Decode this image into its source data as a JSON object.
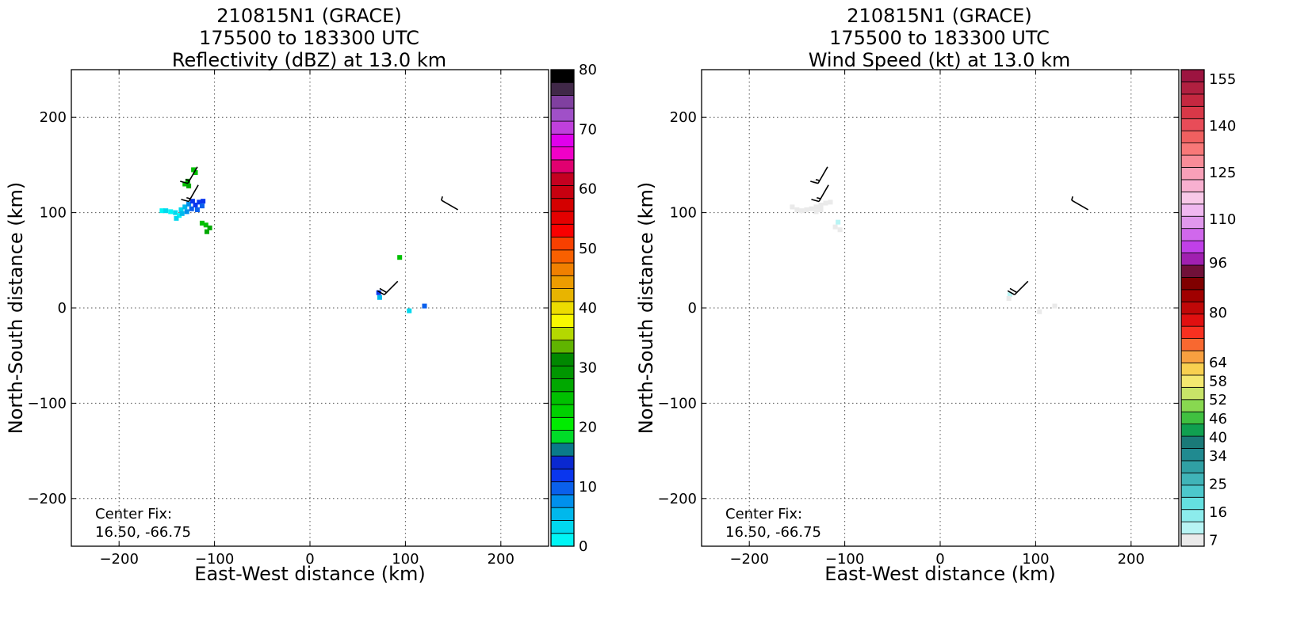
{
  "chart_data": [
    {
      "type": "heatmap",
      "title_lines": [
        "210815N1 (GRACE)",
        "175500 to 183300 UTC",
        "Reflectivity (dBZ) at 13.0 km"
      ],
      "xlabel": "East-West distance (km)",
      "ylabel": "North-South distance (km)",
      "xlim": [
        -250,
        250
      ],
      "ylim": [
        -250,
        250
      ],
      "xticks": [
        -200,
        -100,
        0,
        100,
        200
      ],
      "yticks": [
        -200,
        -100,
        0,
        100,
        200
      ],
      "xtick_labels": [
        "−200",
        "−100",
        "0",
        "100",
        "200"
      ],
      "ytick_labels": [
        "−200",
        "−100",
        "0",
        "100",
        "200"
      ],
      "grid": true,
      "annotation": [
        "Center Fix:",
        "16.50, -66.75"
      ],
      "colorbar": {
        "min": 0,
        "max": 80,
        "tick_values": [
          0,
          10,
          20,
          30,
          40,
          50,
          60,
          70,
          80
        ],
        "tick_labels": [
          "0",
          "10",
          "20",
          "30",
          "40",
          "50",
          "60",
          "70",
          "80"
        ],
        "colors": [
          "#00f5f5",
          "#00d8ee",
          "#00b8ec",
          "#0090ec",
          "#0a60ec",
          "#0a36ee",
          "#0a28d0",
          "#0a7a8a",
          "#00dc28",
          "#00ec00",
          "#00d000",
          "#00c000",
          "#00a800",
          "#009600",
          "#008800",
          "#60b400",
          "#b4d800",
          "#f8f800",
          "#ecdc00",
          "#e8b400",
          "#ec9c00",
          "#f08000",
          "#f86000",
          "#f84000",
          "#f80000",
          "#e40000",
          "#d40000",
          "#c80010",
          "#c40020",
          "#e00070",
          "#f000c8",
          "#e000ec",
          "#c040dc",
          "#a050c8",
          "#8040a0",
          "#402848",
          "#000000"
        ]
      },
      "cells": [
        {
          "x": -122,
          "y": 145,
          "v": 24
        },
        {
          "x": -120,
          "y": 142,
          "v": 24
        },
        {
          "x": -128,
          "y": 133,
          "v": 26
        },
        {
          "x": -131,
          "y": 130,
          "v": 24
        },
        {
          "x": -127,
          "y": 128,
          "v": 26
        },
        {
          "x": -155,
          "y": 102,
          "v": 2
        },
        {
          "x": -151,
          "y": 102,
          "v": 3
        },
        {
          "x": -146,
          "y": 101,
          "v": 1
        },
        {
          "x": -141,
          "y": 100,
          "v": 3
        },
        {
          "x": -137,
          "y": 97,
          "v": 2
        },
        {
          "x": -140,
          "y": 94,
          "v": 3
        },
        {
          "x": -135,
          "y": 103,
          "v": 4
        },
        {
          "x": -131,
          "y": 106,
          "v": 6
        },
        {
          "x": -127,
          "y": 109,
          "v": 7
        },
        {
          "x": -134,
          "y": 99,
          "v": 5
        },
        {
          "x": -129,
          "y": 101,
          "v": 7
        },
        {
          "x": -124,
          "y": 104,
          "v": 9
        },
        {
          "x": -120,
          "y": 108,
          "v": 11
        },
        {
          "x": -116,
          "y": 111,
          "v": 12
        },
        {
          "x": -112,
          "y": 112,
          "v": 11
        },
        {
          "x": -118,
          "y": 103,
          "v": 10
        },
        {
          "x": -113,
          "y": 107,
          "v": 10
        },
        {
          "x": -123,
          "y": 112,
          "v": 11
        },
        {
          "x": -109,
          "y": 87,
          "v": 24
        },
        {
          "x": -105,
          "y": 84,
          "v": 26
        },
        {
          "x": -108,
          "y": 80,
          "v": 26
        },
        {
          "x": -113,
          "y": 89,
          "v": 24
        },
        {
          "x": 94,
          "y": 53,
          "v": 24
        },
        {
          "x": 72,
          "y": 16,
          "v": 11
        },
        {
          "x": 73,
          "y": 11,
          "v": 5
        },
        {
          "x": 104,
          "y": -3,
          "v": 4
        },
        {
          "x": 120,
          "y": 2,
          "v": 9
        }
      ],
      "barbs": [
        {
          "x": -118,
          "y": 148,
          "dir": 210,
          "kt": 15
        },
        {
          "x": -117,
          "y": 129,
          "dir": 210,
          "kt": 15
        },
        {
          "x": 155,
          "y": 103,
          "dir": 300,
          "kt": 5
        },
        {
          "x": 92,
          "y": 28,
          "dir": 225,
          "kt": 20
        }
      ]
    },
    {
      "type": "heatmap",
      "title_lines": [
        "210815N1 (GRACE)",
        "175500 to 183300 UTC",
        "Wind Speed (kt) at 13.0 km"
      ],
      "xlabel": "East-West distance (km)",
      "ylabel": "North-South distance (km)",
      "xlim": [
        -250,
        250
      ],
      "ylim": [
        -250,
        250
      ],
      "xticks": [
        -200,
        -100,
        0,
        100,
        200
      ],
      "yticks": [
        -200,
        -100,
        0,
        100,
        200
      ],
      "xtick_labels": [
        "−200",
        "−100",
        "0",
        "100",
        "200"
      ],
      "ytick_labels": [
        "−200",
        "−100",
        "0",
        "100",
        "200"
      ],
      "grid": true,
      "annotation": [
        "Center Fix:",
        "16.50, -66.75"
      ],
      "colorbar": {
        "min": 7,
        "max": 160,
        "tick_values": [
          7,
          16,
          25,
          34,
          40,
          46,
          52,
          58,
          64,
          80,
          96,
          110,
          125,
          140,
          155
        ],
        "tick_labels": [
          "7",
          "16",
          "25",
          "34",
          "40",
          "46",
          "52",
          "58",
          "64",
          "80",
          "96",
          "110",
          "125",
          "140",
          "155"
        ],
        "colors": [
          "#eaeaea",
          "#b8f4f4",
          "#8cecec",
          "#64e0e0",
          "#4cc8cc",
          "#40b4b8",
          "#30a0a4",
          "#208a90",
          "#1a7a78",
          "#10a050",
          "#40c040",
          "#88d850",
          "#c8e468",
          "#f4e870",
          "#f8d050",
          "#f8a040",
          "#f86830",
          "#f83020",
          "#e01010",
          "#c00808",
          "#a00000",
          "#800000",
          "#701038",
          "#a020b0",
          "#c040e8",
          "#d068ec",
          "#e098ec",
          "#f0b8f0",
          "#f8c8e8",
          "#f8b0d0",
          "#f8a0b8",
          "#f88c98",
          "#f87878",
          "#f06060",
          "#e84c58",
          "#d83848",
          "#c42840",
          "#b02040",
          "#9c1440"
        ]
      },
      "cells": [
        {
          "x": -131,
          "y": 132,
          "v": 9
        },
        {
          "x": -155,
          "y": 106,
          "v": 9
        },
        {
          "x": -150,
          "y": 103,
          "v": 8
        },
        {
          "x": -145,
          "y": 102,
          "v": 7
        },
        {
          "x": -140,
          "y": 103,
          "v": 7
        },
        {
          "x": -135,
          "y": 104,
          "v": 7
        },
        {
          "x": -130,
          "y": 106,
          "v": 8
        },
        {
          "x": -125,
          "y": 108,
          "v": 8
        },
        {
          "x": -120,
          "y": 110,
          "v": 8
        },
        {
          "x": -115,
          "y": 111,
          "v": 7
        },
        {
          "x": -130,
          "y": 101,
          "v": 7
        },
        {
          "x": -125,
          "y": 103,
          "v": 8
        },
        {
          "x": -110,
          "y": 85,
          "v": 10
        },
        {
          "x": -105,
          "y": 82,
          "v": 10
        },
        {
          "x": -107,
          "y": 90,
          "v": 11
        },
        {
          "x": 73,
          "y": 14,
          "v": 11
        },
        {
          "x": 72,
          "y": 10,
          "v": 10
        },
        {
          "x": 104,
          "y": -4,
          "v": 8
        },
        {
          "x": 120,
          "y": 2,
          "v": 9
        }
      ],
      "barbs": [
        {
          "x": -118,
          "y": 148,
          "dir": 210,
          "kt": 15
        },
        {
          "x": -117,
          "y": 129,
          "dir": 210,
          "kt": 15
        },
        {
          "x": 155,
          "y": 103,
          "dir": 300,
          "kt": 5
        },
        {
          "x": 92,
          "y": 28,
          "dir": 225,
          "kt": 20
        }
      ]
    }
  ]
}
